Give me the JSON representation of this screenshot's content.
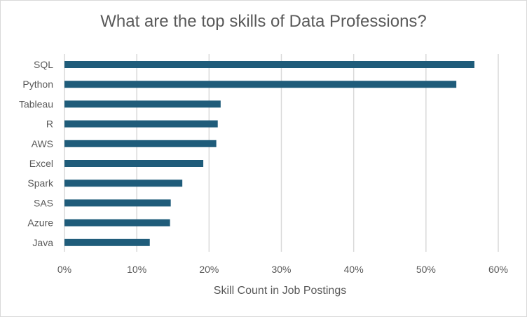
{
  "chart_data": {
    "type": "bar",
    "orientation": "horizontal",
    "title": "What are the top skills of Data Professions?",
    "xlabel": "Skill Count in Job Postings",
    "ylabel": "",
    "categories": [
      "SQL",
      "Python",
      "Tableau",
      "R",
      "AWS",
      "Excel",
      "Spark",
      "SAS",
      "Azure",
      "Java"
    ],
    "values": [
      0.567,
      0.542,
      0.216,
      0.212,
      0.21,
      0.192,
      0.163,
      0.147,
      0.146,
      0.118
    ],
    "xlim": [
      0,
      0.6
    ],
    "xticks": [
      0,
      0.1,
      0.2,
      0.3,
      0.4,
      0.5,
      0.6
    ],
    "xtick_labels": [
      "0%",
      "10%",
      "20%",
      "30%",
      "40%",
      "50%",
      "60%"
    ],
    "grid": true,
    "legend": "none",
    "bar_color": "#1f5c7a",
    "grid_color": "#d9d9d9"
  }
}
